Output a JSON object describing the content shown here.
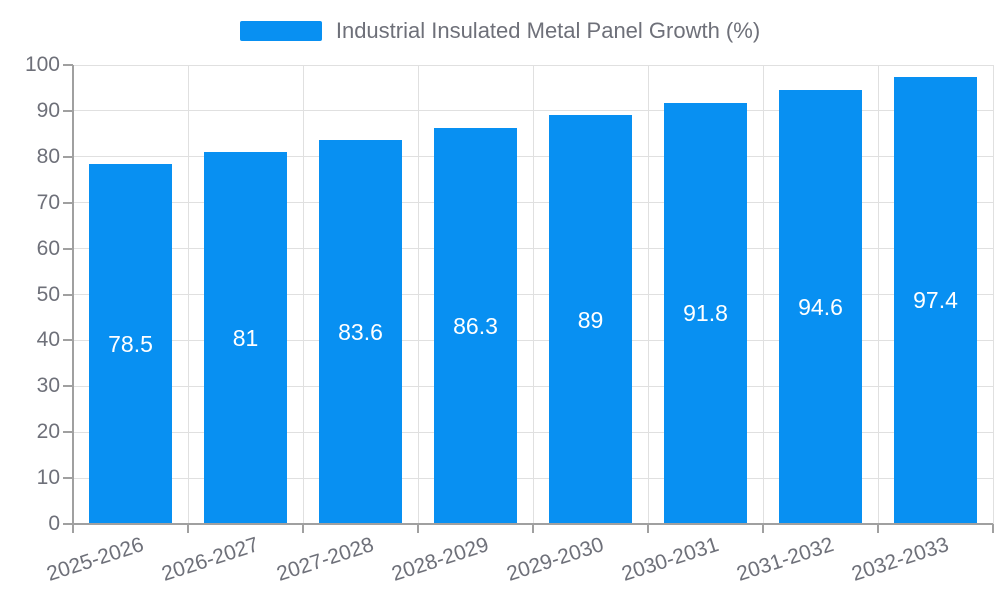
{
  "legend": {
    "label": "Industrial Insulated Metal Panel Growth (%)"
  },
  "chart_data": {
    "type": "bar",
    "title": "",
    "categories": [
      "2025-2026",
      "2026-2027",
      "2027-2028",
      "2028-2029",
      "2029-2030",
      "2030-2031",
      "2031-2032",
      "2032-2033"
    ],
    "series": [
      {
        "name": "Industrial Insulated Metal Panel Growth (%)",
        "values": [
          78.5,
          81,
          83.6,
          86.3,
          89,
          91.8,
          94.6,
          97.4
        ],
        "data_labels": [
          "78.5",
          "81",
          "83.6",
          "86.3",
          "89",
          "91.8",
          "94.6",
          "97.4"
        ]
      }
    ],
    "xlabel": "",
    "ylabel": "",
    "ylim": [
      0,
      100
    ],
    "yticks": [
      0,
      10,
      20,
      30,
      40,
      50,
      60,
      70,
      80,
      90,
      100
    ],
    "grid": "horizontal-and-vertical",
    "legend_position": "top-center",
    "x_label_rotation_deg": -18,
    "colors": {
      "bar": "#0890F2",
      "data_label": "#FFFFFF",
      "axis_label": "#6E7079",
      "legend_text": "#6E7079",
      "axis_line": "#A0A0A0",
      "gridline": "#E0E0E0",
      "background": "#FFFFFF"
    }
  }
}
